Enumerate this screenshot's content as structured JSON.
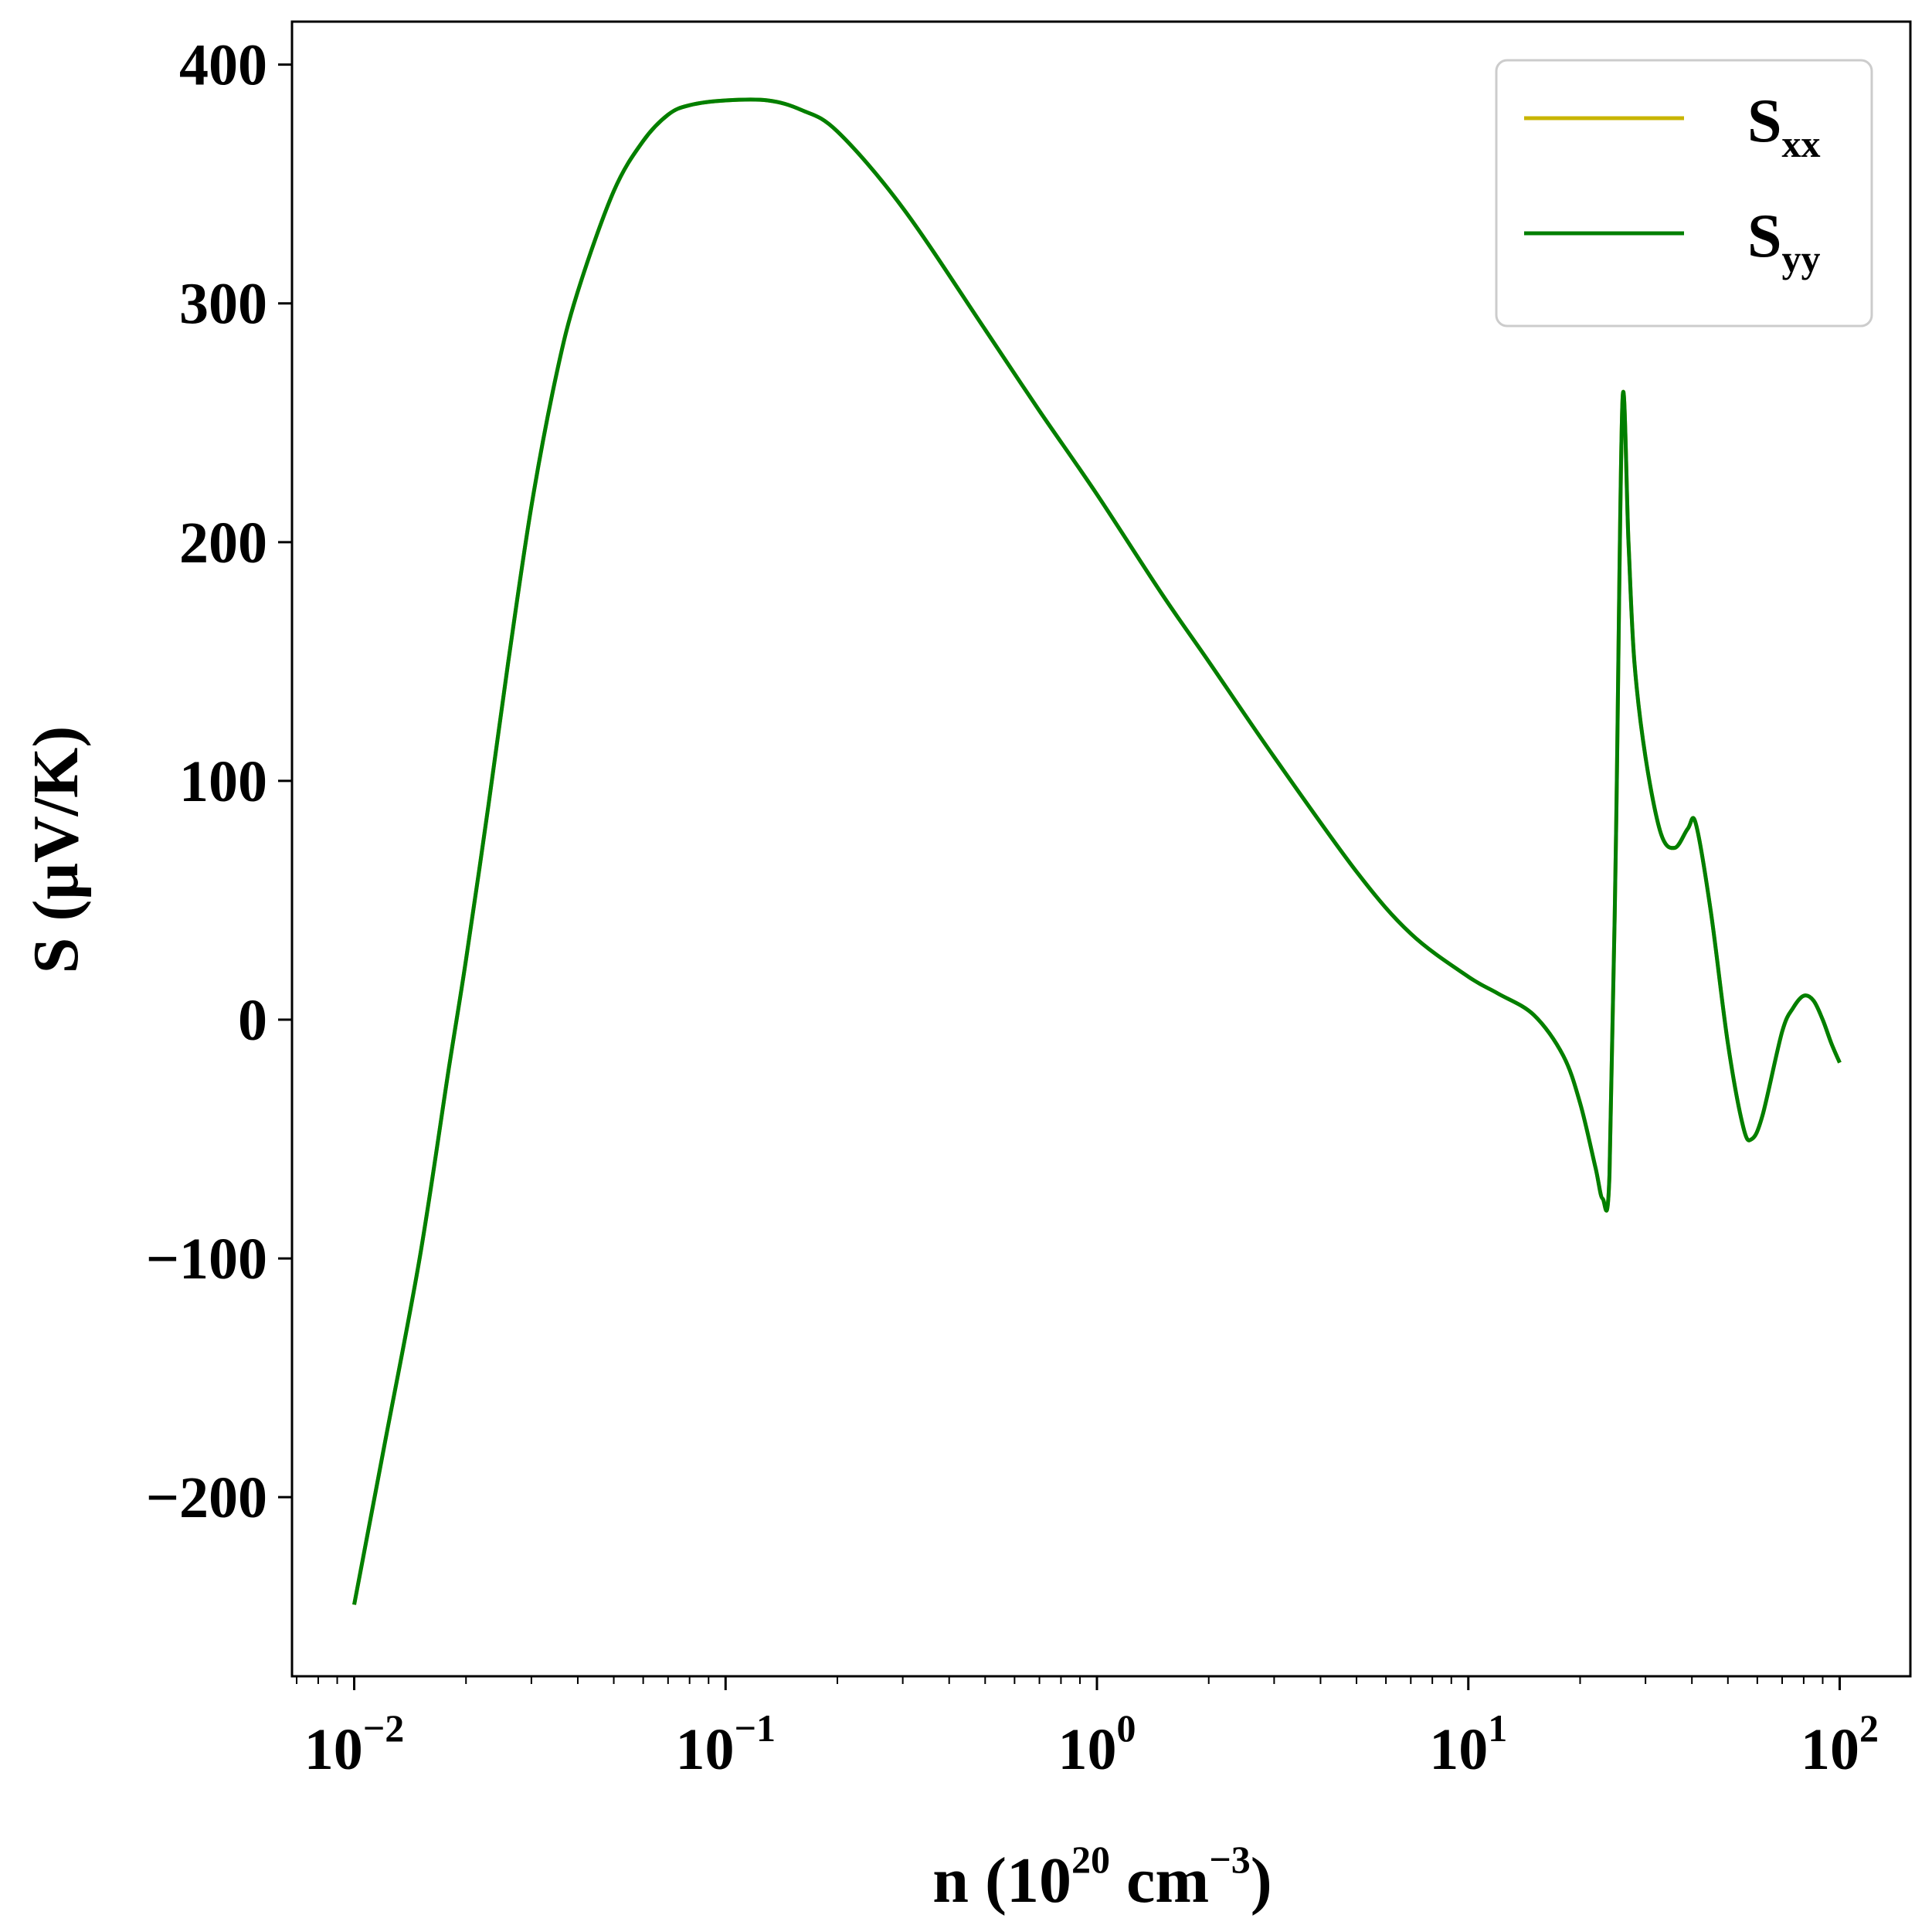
{
  "chart_data": {
    "type": "line",
    "title": "",
    "xlabel": {
      "base": "n (10",
      "sup1": "20",
      "mid": " cm",
      "sup2": "−3",
      "end": ")"
    },
    "ylabel": "S (μV/K)",
    "x_scale": "log",
    "xlim": [
      0.0068,
      155
    ],
    "ylim": [
      -275,
      418
    ],
    "x_ticks": [
      {
        "value": 0.01,
        "base": "10",
        "exp": "−2"
      },
      {
        "value": 0.1,
        "base": "10",
        "exp": "−1"
      },
      {
        "value": 1,
        "base": "10",
        "exp": "0"
      },
      {
        "value": 10,
        "base": "10",
        "exp": "1"
      },
      {
        "value": 100,
        "base": "10",
        "exp": "2"
      }
    ],
    "y_ticks": [
      {
        "value": -200,
        "label": "−200"
      },
      {
        "value": -100,
        "label": "−100"
      },
      {
        "value": 0,
        "label": "0"
      },
      {
        "value": 100,
        "label": "100"
      },
      {
        "value": 200,
        "label": "200"
      },
      {
        "value": 300,
        "label": "300"
      },
      {
        "value": 400,
        "label": "400"
      }
    ],
    "grid": false,
    "legend_position": "top-right",
    "series": [
      {
        "name": "S",
        "subscript": "xx",
        "color": "#c8b400",
        "x": [
          0.01,
          0.012,
          0.015,
          0.018,
          0.02,
          0.023,
          0.026,
          0.03,
          0.035,
          0.04,
          0.05,
          0.06,
          0.07,
          0.08,
          0.1,
          0.13,
          0.16,
          0.2,
          0.3,
          0.5,
          0.7,
          1,
          1.5,
          2,
          3,
          5,
          7,
          10,
          12,
          15,
          18,
          20,
          22,
          23,
          24,
          25,
          26,
          27,
          28,
          30,
          33,
          36,
          39,
          41,
          45,
          50,
          55,
          58,
          62,
          70,
          75,
          80,
          85,
          90,
          95,
          100
        ],
        "y": [
          -245,
          -180,
          -100,
          -20,
          25,
          90,
          150,
          215,
          270,
          305,
          347,
          368,
          379,
          383,
          385,
          385,
          381,
          372,
          340,
          289,
          255,
          220,
          178,
          150,
          110,
          62,
          36,
          18,
          11,
          2,
          -15,
          -35,
          -62,
          -75,
          -65,
          80,
          259,
          200,
          150,
          110,
          78,
          72,
          80,
          82,
          45,
          -10,
          -45,
          -50,
          -40,
          -5,
          5,
          10,
          8,
          0,
          -10,
          -18
        ]
      },
      {
        "name": "S",
        "subscript": "yy",
        "color": "#007f00",
        "x": [
          0.01,
          0.012,
          0.015,
          0.018,
          0.02,
          0.023,
          0.026,
          0.03,
          0.035,
          0.04,
          0.05,
          0.06,
          0.07,
          0.08,
          0.1,
          0.13,
          0.16,
          0.2,
          0.3,
          0.5,
          0.7,
          1,
          1.5,
          2,
          3,
          5,
          7,
          10,
          12,
          15,
          18,
          20,
          22,
          23,
          24,
          25,
          26,
          27,
          28,
          30,
          33,
          36,
          39,
          41,
          45,
          50,
          55,
          58,
          62,
          70,
          75,
          80,
          85,
          90,
          95,
          100
        ],
        "y": [
          -245,
          -180,
          -100,
          -20,
          25,
          90,
          150,
          215,
          270,
          305,
          347,
          368,
          379,
          383,
          385,
          385,
          381,
          372,
          340,
          289,
          255,
          220,
          178,
          150,
          110,
          62,
          36,
          18,
          11,
          2,
          -15,
          -35,
          -62,
          -75,
          -65,
          80,
          259,
          200,
          150,
          110,
          78,
          72,
          80,
          82,
          45,
          -10,
          -45,
          -50,
          -40,
          -5,
          5,
          10,
          8,
          0,
          -10,
          -18
        ]
      }
    ]
  }
}
